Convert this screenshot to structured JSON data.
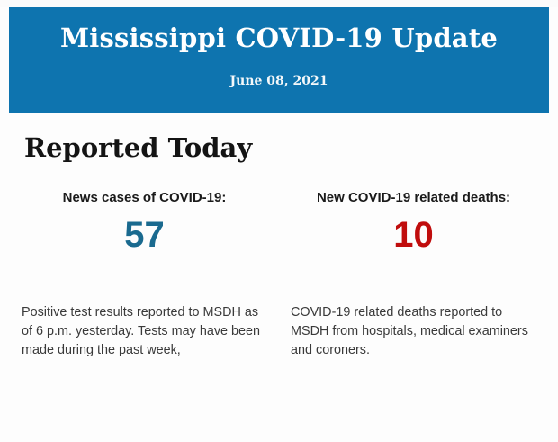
{
  "header": {
    "title": "Mississippi COVID-19 Update",
    "date": "June 08, 2021",
    "background_color": "#0e74af",
    "text_color": "#ffffff"
  },
  "section": {
    "heading": "Reported Today"
  },
  "stats": [
    {
      "label": "News cases of COVID-19:",
      "value": "57",
      "value_color": "#1a6a8f",
      "description": "Positive test results reported to MSDH as of 6 p.m. yesterday. Tests may have been made during the past week,"
    },
    {
      "label": "New COVID-19 related deaths:",
      "value": "10",
      "value_color": "#c00d0d",
      "description": "COVID-19 related deaths reported to MSDH from hospitals, medical examiners and coroners."
    }
  ]
}
